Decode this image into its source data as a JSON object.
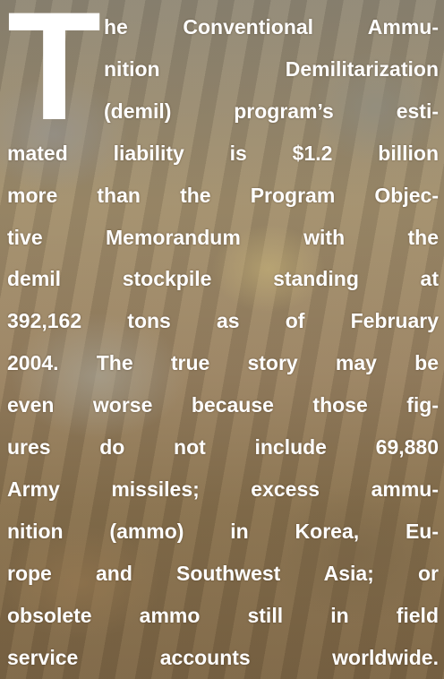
{
  "drop_cap": "T",
  "lines": [
    "he Conventional Ammu-",
    "nition Demilitarization",
    "(demil) program’s esti-",
    "mated liability is $1.2 billion",
    "more than the Program Objec-",
    "tive Memorandum with the",
    "demil stockpile standing at",
    "392,162 tons as of February",
    "2004. The true story may be",
    "even worse because those fig-",
    "ures do not include 69,880",
    "Army missiles; excess ammu-",
    "nition (ammo) in Korea, Eu-",
    "rope and Southwest Asia; or",
    "obsolete ammo still in field",
    "service accounts worldwide."
  ]
}
